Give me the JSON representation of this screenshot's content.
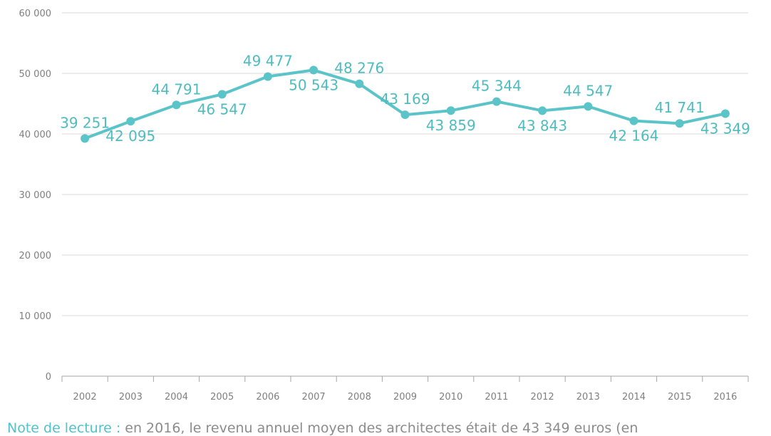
{
  "chart_data": {
    "type": "line",
    "title": "",
    "xlabel": "",
    "ylabel": "",
    "categories": [
      "2002",
      "2003",
      "2004",
      "2005",
      "2006",
      "2007",
      "2008",
      "2009",
      "2010",
      "2011",
      "2012",
      "2013",
      "2014",
      "2015",
      "2016"
    ],
    "series": [
      {
        "values": [
          39251,
          42095,
          44791,
          46547,
          49477,
          50543,
          48276,
          43169,
          43859,
          45344,
          43843,
          44547,
          42164,
          41741,
          43349
        ],
        "data_labels": [
          "39 251",
          "42 095",
          "44 791",
          "46 547",
          "49 477",
          "50 543",
          "48 276",
          "43 169",
          "43 859",
          "45 344",
          "43 843",
          "44 547",
          "42 164",
          "41 741",
          "43 349"
        ],
        "label_positions": [
          "above",
          "below",
          "above",
          "below",
          "above",
          "below",
          "above",
          "above",
          "below",
          "above",
          "below",
          "above",
          "below",
          "above",
          "below"
        ]
      }
    ],
    "ylim": [
      0,
      60000
    ],
    "yticks": [
      0,
      10000,
      20000,
      30000,
      40000,
      50000,
      60000
    ],
    "ytick_labels": [
      "0",
      "10 000",
      "20 000",
      "30 000",
      "40 000",
      "50 000",
      "60 000"
    ],
    "grid": true,
    "legend": "none",
    "colors": {
      "series": "#5bc4c8",
      "label": "#4fbcc0",
      "grid": "#d9d9d9",
      "axis": "#a6a6a6",
      "tick_text": "#7f7f7f"
    }
  },
  "note": {
    "lead": "Note de lecture :",
    "text": " en 2016, le revenu annuel moyen des architectes était de 43 349 euros (en"
  }
}
